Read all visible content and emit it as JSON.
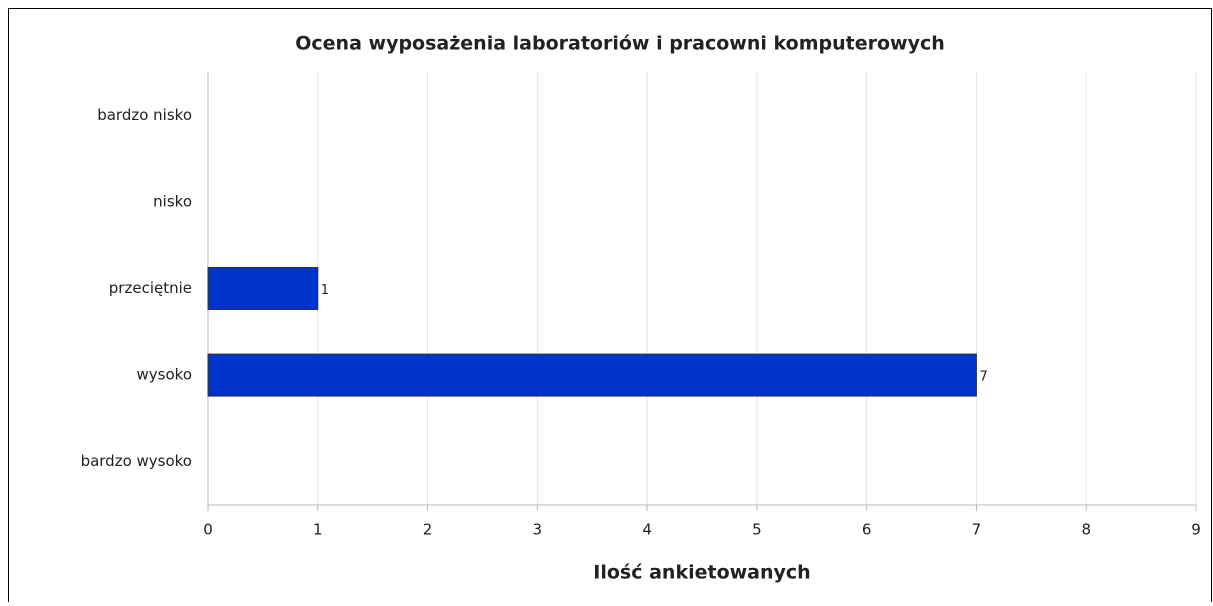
{
  "chart_data": {
    "type": "hbar",
    "title": "Ocena wyposażenia laboratoriów i pracowni komputerowych",
    "xlabel": "Ilość ankietowanych",
    "categories": [
      "bardzo nisko",
      "nisko",
      "przeciętnie",
      "wysoko",
      "bardzo wysoko"
    ],
    "values": [
      0,
      0,
      1,
      7,
      0
    ],
    "color": "#0033cc",
    "xlim": [
      0,
      9
    ],
    "xticks": [
      0,
      1,
      2,
      3,
      4,
      5,
      6,
      7,
      8,
      9
    ],
    "grid": true
  }
}
